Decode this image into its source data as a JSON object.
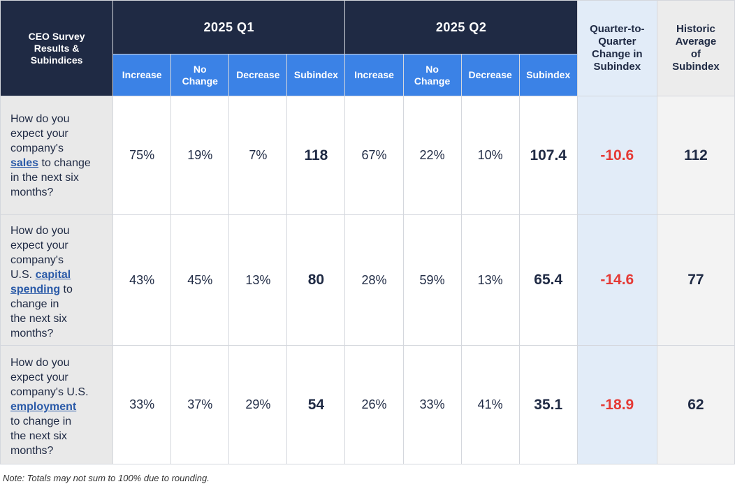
{
  "header": {
    "corner_lines": [
      "CEO Survey",
      "Results &",
      "Subindices"
    ],
    "quarters": [
      "2025 Q1",
      "2025 Q2"
    ],
    "subcolumns": [
      [
        "Increase"
      ],
      [
        "No",
        "Change"
      ],
      [
        "Decrease"
      ],
      [
        "Subindex"
      ]
    ],
    "change_lines": [
      "Quarter-to-",
      "Quarter",
      "Change in",
      "Subindex"
    ],
    "historic_lines": [
      "Historic",
      "Average",
      "of",
      "Subindex"
    ]
  },
  "rows": [
    {
      "question": {
        "lines": [
          [
            {
              "t": "How do you"
            }
          ],
          [
            {
              "t": "expect your"
            }
          ],
          [
            {
              "t": "company's"
            }
          ],
          [
            {
              "t": "sales",
              "kw": true
            },
            {
              "t": " to change"
            }
          ],
          [
            {
              "t": "in the next six"
            }
          ],
          [
            {
              "t": "months?"
            }
          ]
        ]
      },
      "q1": {
        "increase": "75%",
        "no_change": "19%",
        "decrease": "7%",
        "subindex": "118"
      },
      "q2": {
        "increase": "67%",
        "no_change": "22%",
        "decrease": "10%",
        "subindex": "107.4"
      },
      "change": "-10.6",
      "historic": "112"
    },
    {
      "question": {
        "lines": [
          [
            {
              "t": "How do you"
            }
          ],
          [
            {
              "t": "expect your"
            }
          ],
          [
            {
              "t": "company's"
            }
          ],
          [
            {
              "t": "U.S. "
            },
            {
              "t": "capital",
              "kw": true
            }
          ],
          [
            {
              "t": "spending",
              "kw": true
            },
            {
              "t": " to"
            }
          ],
          [
            {
              "t": "change in"
            }
          ],
          [
            {
              "t": "the next six"
            }
          ],
          [
            {
              "t": "months?"
            }
          ]
        ]
      },
      "q1": {
        "increase": "43%",
        "no_change": "45%",
        "decrease": "13%",
        "subindex": "80"
      },
      "q2": {
        "increase": "28%",
        "no_change": "59%",
        "decrease": "13%",
        "subindex": "65.4"
      },
      "change": "-14.6",
      "historic": "77"
    },
    {
      "question": {
        "lines": [
          [
            {
              "t": "How do you"
            }
          ],
          [
            {
              "t": "expect your"
            }
          ],
          [
            {
              "t": "company's U.S."
            }
          ],
          [
            {
              "t": "employment",
              "kw": true
            }
          ],
          [
            {
              "t": "to change in"
            }
          ],
          [
            {
              "t": "the next six"
            }
          ],
          [
            {
              "t": "months?"
            }
          ]
        ]
      },
      "q1": {
        "increase": "33%",
        "no_change": "37%",
        "decrease": "29%",
        "subindex": "54"
      },
      "q2": {
        "increase": "26%",
        "no_change": "33%",
        "decrease": "41%",
        "subindex": "35.1"
      },
      "change": "-18.9",
      "historic": "62"
    }
  ],
  "note": "Note: Totals may not sum to 100% due to rounding.",
  "colors": {
    "header_navy": "#1f2a44",
    "subheader_blue": "#3b82e6",
    "change_bg": "#e2ecf8",
    "negative_red": "#e53935",
    "keyword_blue": "#2a5aa8"
  }
}
